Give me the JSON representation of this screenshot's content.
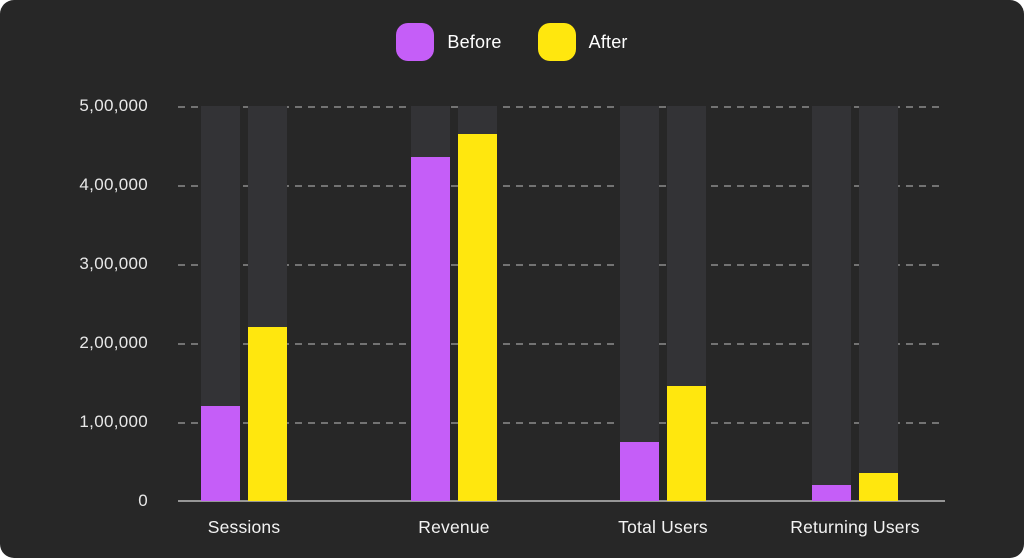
{
  "colors": {
    "background": "#272727",
    "before_series": "#c55ef8",
    "after_series": "#ffe70e",
    "bar_track": "#333336",
    "gridline": "#8c8c8c",
    "axis_line": "#969696",
    "tick_text": "#e8e8e8",
    "legend_text": "#ffffff"
  },
  "legend": {
    "items": [
      {
        "label": "Before",
        "color": "#c55ef8",
        "swatch": "purple-rounded-square"
      },
      {
        "label": "After",
        "color": "#ffe70e",
        "swatch": "yellow-rounded-square"
      }
    ]
  },
  "chart_data": {
    "type": "bar",
    "title": "",
    "xlabel": "",
    "ylabel": "",
    "categories": [
      "Sessions",
      "Revenue",
      "Total Users",
      "Returning Users"
    ],
    "series": [
      {
        "name": "Before",
        "color": "#c55ef8",
        "values": [
          120000,
          435000,
          75000,
          20000
        ]
      },
      {
        "name": "After",
        "color": "#ffe70e",
        "values": [
          220000,
          465000,
          145000,
          35000
        ]
      }
    ],
    "ylim": [
      0,
      500000
    ],
    "ytick_values": [
      0,
      100000,
      200000,
      300000,
      400000,
      500000
    ],
    "ytick_labels": [
      "0",
      "1,00,000",
      "2,00,000",
      "3,00,000",
      "4,00,000",
      "5,00,000"
    ],
    "number_format": "indian-lakh",
    "grid": "horizontal-dashed",
    "background_tracks": "full-height gray columns behind each bar",
    "legend_position": "top-center"
  }
}
